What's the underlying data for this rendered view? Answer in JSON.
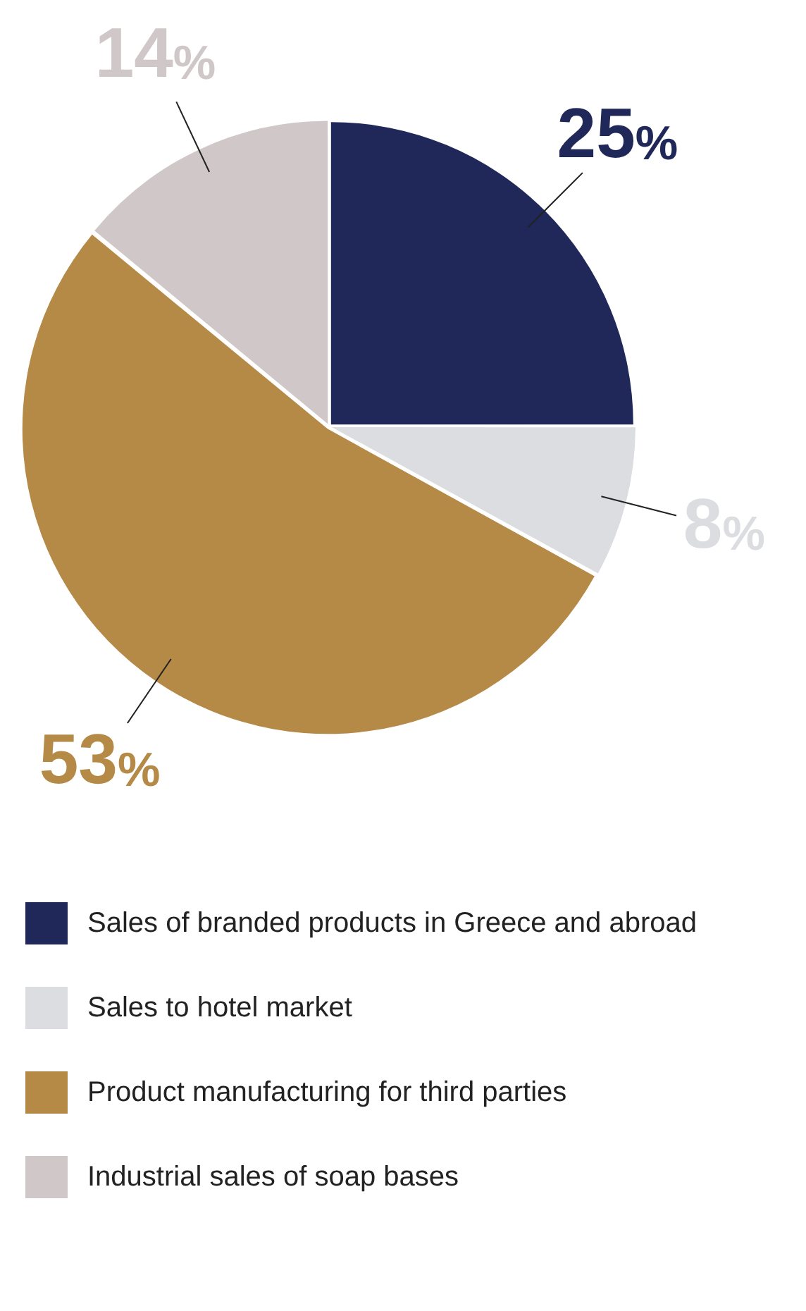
{
  "chart_data": {
    "type": "pie",
    "categories": [
      "Sales of branded products in Greece and abroad",
      "Sales to hotel market",
      "Product manufacturing for third parties",
      "Industrial sales of soap bases"
    ],
    "values": [
      25,
      8,
      53,
      14
    ],
    "colors": [
      "#1f2858",
      "#dcdde0",
      "#b58a47",
      "#d0c8c8"
    ],
    "value_labels": [
      "25%",
      "8%",
      "53%",
      "14%"
    ],
    "legend": "bottom"
  }
}
